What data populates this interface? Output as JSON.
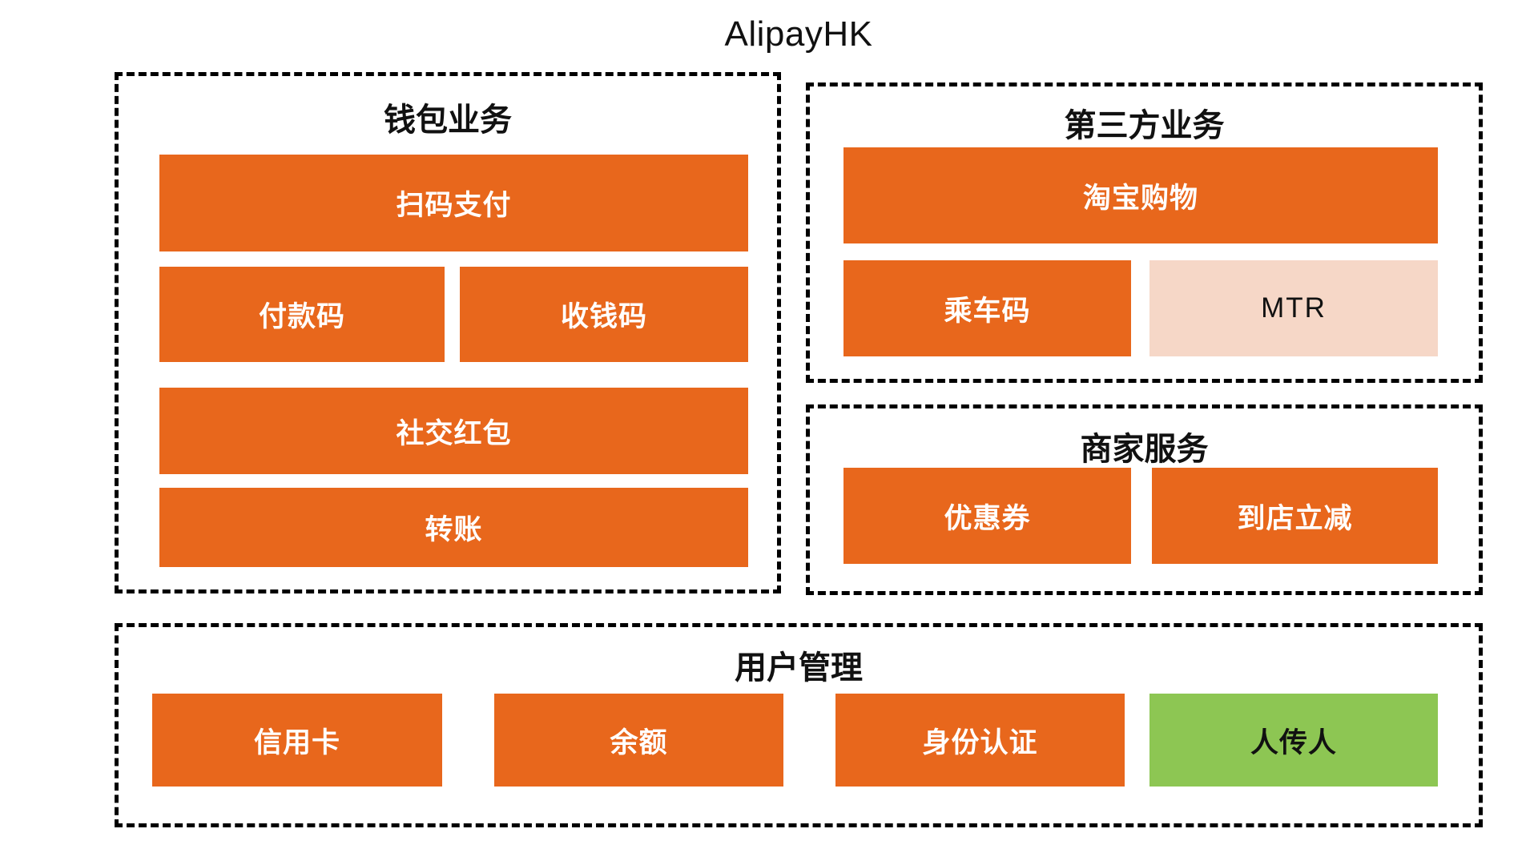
{
  "title": "AlipayHK",
  "colors": {
    "orange": "#e8671c",
    "pink": "#f6d7c7",
    "green": "#8dc653",
    "line": "#000000",
    "text_on_orange": "#ffffff",
    "text_dark": "#111111"
  },
  "groups": [
    {
      "label": "钱包业务",
      "blocks": [
        {
          "label": "扫码支付",
          "variant": "orange"
        },
        {
          "label": "付款码",
          "variant": "orange"
        },
        {
          "label": "收钱码",
          "variant": "orange"
        },
        {
          "label": "社交红包",
          "variant": "orange"
        },
        {
          "label": "转账",
          "variant": "orange"
        }
      ]
    },
    {
      "label": "第三方业务",
      "blocks": [
        {
          "label": "淘宝购物",
          "variant": "orange"
        },
        {
          "label": "乘车码",
          "variant": "orange"
        },
        {
          "label": "MTR",
          "variant": "pink"
        }
      ]
    },
    {
      "label": "商家服务",
      "blocks": [
        {
          "label": "优惠券",
          "variant": "orange"
        },
        {
          "label": "到店立减",
          "variant": "orange"
        }
      ]
    },
    {
      "label": "用户管理",
      "blocks": [
        {
          "label": "信用卡",
          "variant": "orange"
        },
        {
          "label": "余额",
          "variant": "orange"
        },
        {
          "label": "身份认证",
          "variant": "orange"
        },
        {
          "label": "人传人",
          "variant": "green"
        }
      ]
    }
  ]
}
